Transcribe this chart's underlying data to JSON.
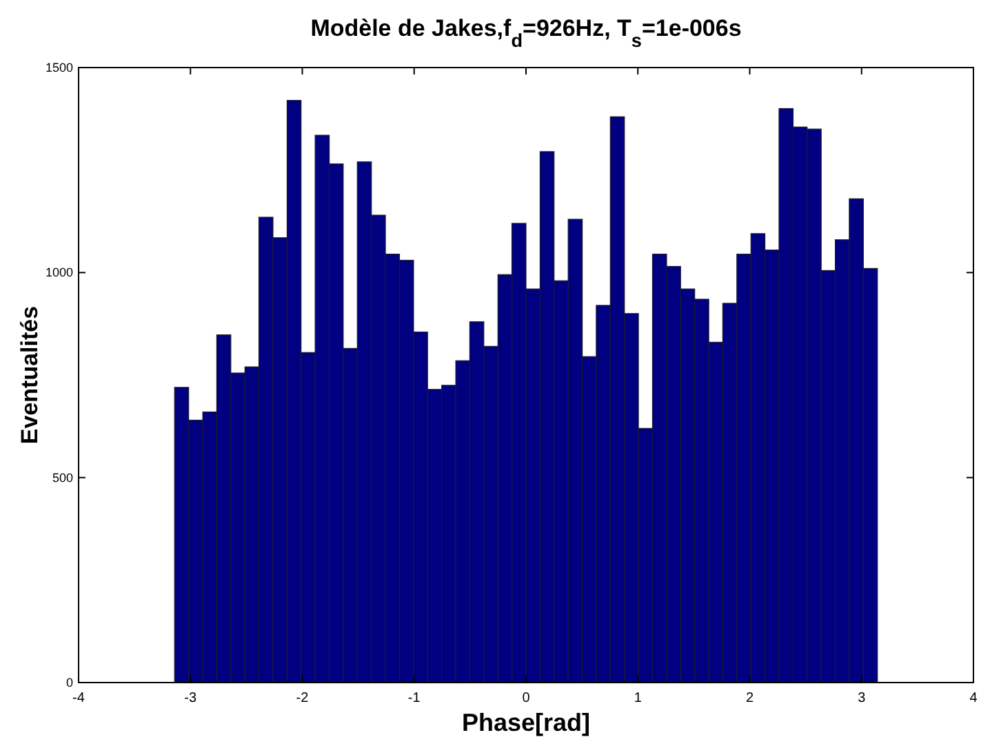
{
  "chart_data": {
    "type": "histogram",
    "title": "Modèle de Jakes,f$_{d}$=926Hz, T$_{s}$=1e-006s",
    "xlabel": "Phase[rad]",
    "ylabel": "Eventualités",
    "color": "#000080",
    "bins": [
      -3.142,
      -3.016,
      -2.89,
      -2.765,
      -2.639,
      -2.513,
      -2.388,
      -2.262,
      -2.136,
      -2.011,
      -1.885,
      -1.759,
      -1.634,
      -1.508,
      -1.382,
      -1.257,
      -1.131,
      -1.005,
      -0.88,
      -0.754,
      -0.628,
      -0.503,
      -0.377,
      -0.251,
      -0.126,
      0,
      0.126,
      0.251,
      0.377,
      0.503,
      0.628,
      0.754,
      0.88,
      1.005,
      1.131,
      1.257,
      1.382,
      1.508,
      1.634,
      1.759,
      1.885,
      2.011,
      2.136,
      2.262,
      2.388,
      2.513,
      2.639,
      2.765,
      2.89,
      3.016,
      3.142
    ],
    "values": [
      720,
      640,
      660,
      848,
      755,
      770,
      1135,
      1085,
      1420,
      805,
      1335,
      1265,
      815,
      1270,
      1140,
      1045,
      1030,
      855,
      715,
      725,
      785,
      880,
      820,
      995,
      1120,
      960,
      1295,
      980,
      1130,
      795,
      920,
      1380,
      900,
      620,
      1045,
      1015,
      960,
      935,
      830,
      925,
      1045,
      1095,
      1055,
      1400,
      1355,
      1350,
      1005,
      1080,
      1180,
      1010
    ],
    "xlim": [
      -4,
      4
    ],
    "xticks": [
      -4,
      -3,
      -2,
      -1,
      0,
      1,
      2,
      3,
      4
    ],
    "ylim": [
      0,
      1500
    ],
    "yticks": [
      0,
      500,
      1000,
      1500
    ],
    "grid": false
  }
}
